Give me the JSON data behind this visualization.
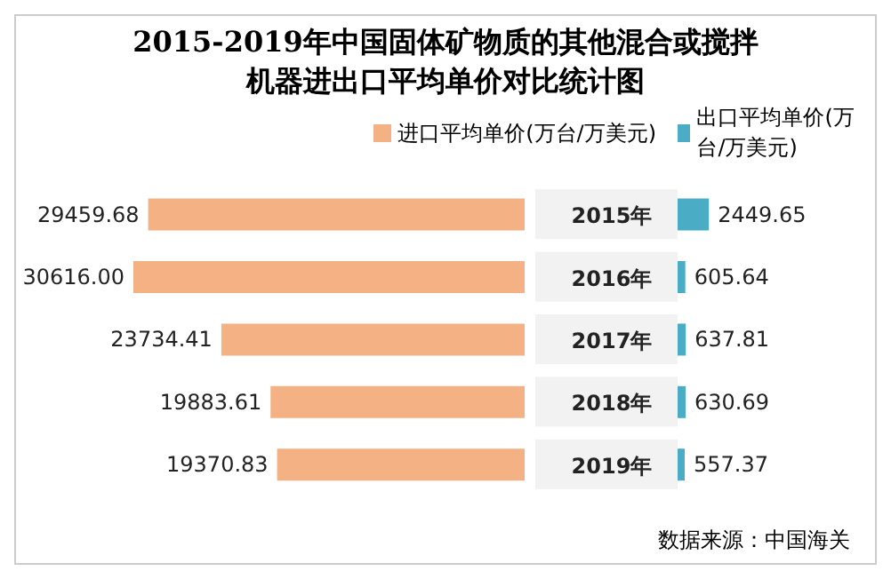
{
  "chart_data": [
    {
      "type": "bar",
      "orientation": "horizontal",
      "title": "2015-2019年中国固体矿物质的其他混合或搅拌机器进出口平均单价对比统计图",
      "categories": [
        "2015年",
        "2016年",
        "2017年",
        "2018年",
        "2019年"
      ],
      "legend": "top",
      "series": [
        {
          "name": "进口平均单价(万台/万美元)",
          "color": "#f4b183",
          "values": [
            29459.68,
            30616.0,
            23734.41,
            19883.61,
            19370.83
          ],
          "value_labels": [
            "29459.68",
            "30616.00",
            "23734.41",
            "19883.61",
            "19370.83"
          ]
        }
      ]
    },
    {
      "type": "bar",
      "orientation": "horizontal",
      "categories": [
        null,
        null,
        null,
        null,
        null
      ],
      "tick_labels": false,
      "legend": "top",
      "series": [
        {
          "name": "出口平均单价(万台/万美元)",
          "color": "#4bacc6",
          "values": [
            2449.65,
            605.64,
            637.81,
            630.69,
            557.37
          ],
          "value_labels": [
            "2449.65",
            "605.64",
            "637.81",
            "630.69",
            "557.37"
          ]
        }
      ],
      "annotations": [
        "数据来源：中国海关"
      ]
    }
  ]
}
